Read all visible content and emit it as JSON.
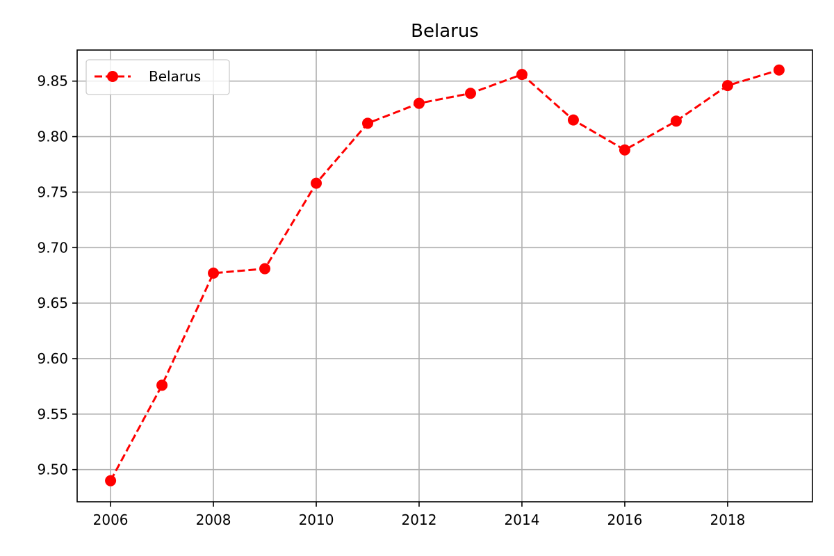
{
  "chart_data": {
    "type": "line",
    "title": "Belarus",
    "xlabel": "",
    "ylabel": "",
    "x": [
      2006,
      2007,
      2008,
      2009,
      2010,
      2011,
      2012,
      2013,
      2014,
      2015,
      2016,
      2017,
      2018,
      2019
    ],
    "series": [
      {
        "name": "Belarus",
        "values": [
          9.49,
          9.576,
          9.677,
          9.681,
          9.758,
          9.812,
          9.83,
          9.839,
          9.856,
          9.815,
          9.788,
          9.814,
          9.846,
          9.86
        ],
        "color": "#ff0000",
        "line_style": "dashed",
        "marker": "circle"
      }
    ],
    "xlim": [
      2005.35,
      2019.65
    ],
    "ylim": [
      9.471,
      9.878
    ],
    "x_ticks": [
      "2006",
      "2008",
      "2010",
      "2012",
      "2014",
      "2016",
      "2018"
    ],
    "y_ticks": [
      "9.50",
      "9.55",
      "9.60",
      "9.65",
      "9.70",
      "9.75",
      "9.80",
      "9.85"
    ],
    "grid": true,
    "legend": {
      "position": "top-left",
      "entries": [
        "Belarus"
      ]
    }
  }
}
